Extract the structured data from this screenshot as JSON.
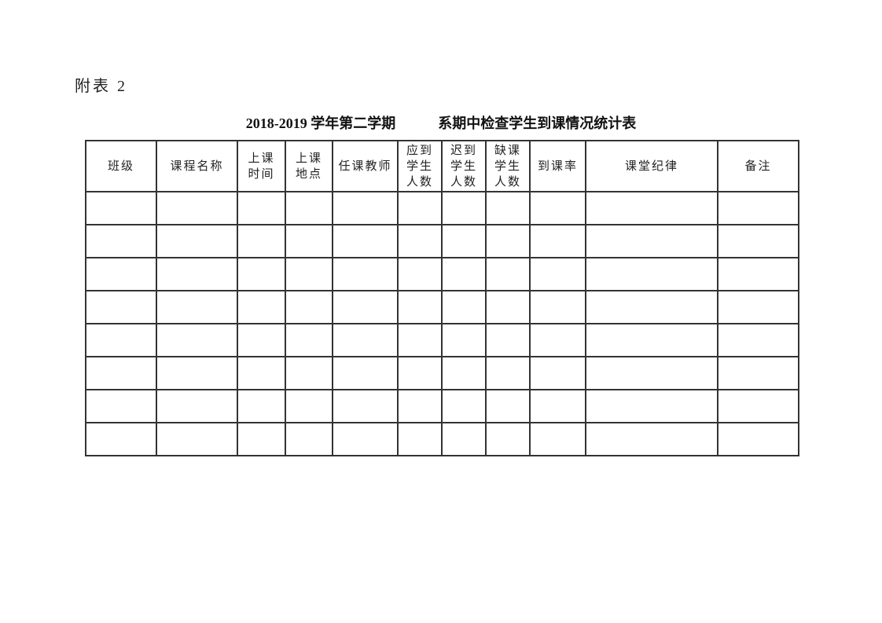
{
  "document": {
    "label": "附表 2",
    "title": "2018-2019 学年第二学期　　　系期中检查学生到课情况统计表"
  },
  "table": {
    "headers": [
      "班级",
      "课程名称",
      "上课\n时间",
      "上课\n地点",
      "任课教师",
      "应到\n学生\n人数",
      "迟到\n学生\n人数",
      "缺课\n学生\n人数",
      "到课率",
      "课堂纪律",
      "备注"
    ],
    "empty_rows": 8
  },
  "colors": {
    "table_border": "#333333",
    "text": "#1c1c1c",
    "page_background": "#ffffff"
  }
}
